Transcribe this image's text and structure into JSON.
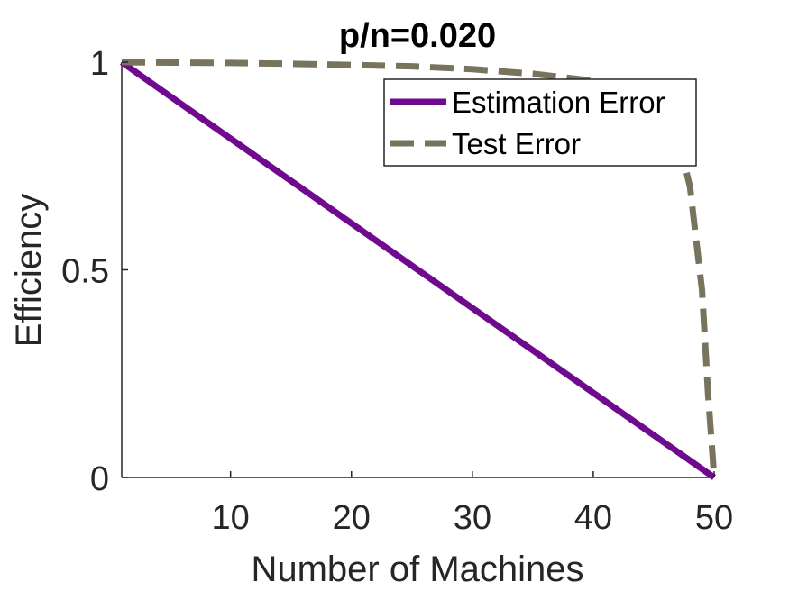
{
  "chart_data": {
    "type": "line",
    "title": "p/n=0.020",
    "xlabel": "Number of Machines",
    "ylabel": "Efficiency",
    "xlim": [
      1,
      50
    ],
    "ylim": [
      0,
      1
    ],
    "xticks": [
      10,
      20,
      30,
      40,
      50
    ],
    "yticks": [
      0,
      0.5,
      1
    ],
    "xtick_labels": [
      "10",
      "20",
      "30",
      "40",
      "50"
    ],
    "ytick_labels": [
      "0",
      "0.5",
      "1"
    ],
    "grid": false,
    "legend_position": "top-right",
    "series": [
      {
        "name": "Estimation Error",
        "color": "#6f0a8f",
        "style": "solid",
        "x": [
          1,
          5,
          10,
          15,
          20,
          25,
          30,
          35,
          40,
          45,
          50
        ],
        "y": [
          1.0,
          0.918,
          0.816,
          0.714,
          0.612,
          0.51,
          0.408,
          0.306,
          0.204,
          0.102,
          0.0
        ]
      },
      {
        "name": "Test Error",
        "color": "#77735c",
        "style": "dashed",
        "x": [
          1,
          5,
          10,
          15,
          20,
          25,
          30,
          35,
          40,
          44,
          46,
          47,
          48,
          49,
          49.5,
          50
        ],
        "y": [
          1.0,
          0.999,
          0.998,
          0.996,
          0.993,
          0.99,
          0.983,
          0.972,
          0.955,
          0.92,
          0.88,
          0.82,
          0.7,
          0.45,
          0.2,
          0.0
        ]
      }
    ]
  }
}
